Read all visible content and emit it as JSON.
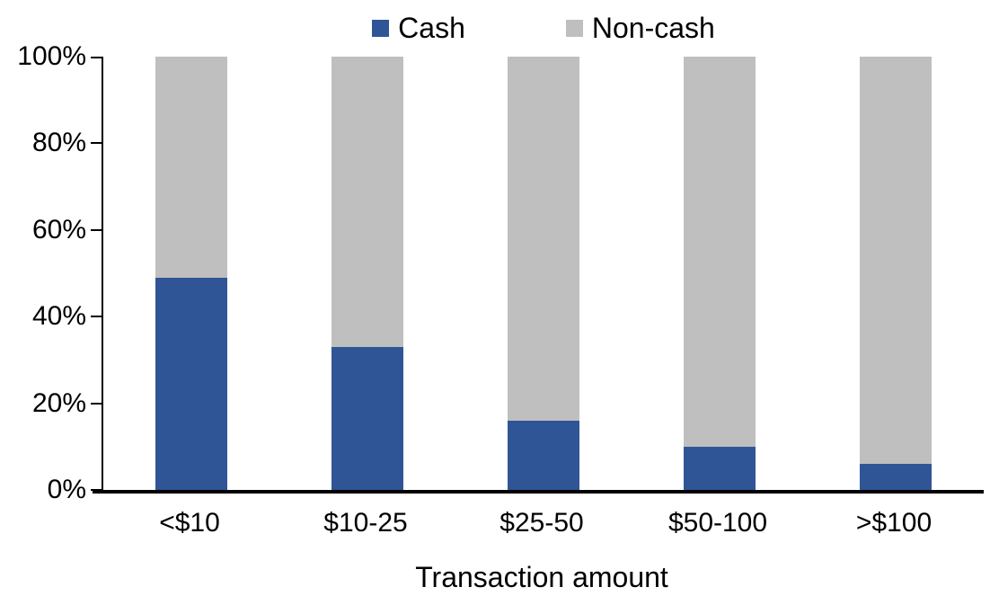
{
  "chart_data": {
    "type": "bar",
    "stacked": true,
    "percent_stacked": true,
    "title": "",
    "xlabel": "Transaction amount",
    "ylabel": "",
    "ylim": [
      0,
      100
    ],
    "grid": false,
    "legend_position": "top",
    "background_color": "#FFFFFF",
    "axis_color": "#000000",
    "categories": [
      "<$10",
      "$10-25",
      "$25-50",
      "$50-100",
      ">$100"
    ],
    "series": [
      {
        "name": "Cash",
        "color": "#2F5597",
        "values": [
          49,
          33,
          16,
          10,
          6
        ]
      },
      {
        "name": "Non-cash",
        "color": "#BFBFBF",
        "values": [
          51,
          67,
          84,
          90,
          94
        ]
      }
    ],
    "y_ticks": [
      "0%",
      "20%",
      "40%",
      "60%",
      "80%",
      "100%"
    ]
  }
}
